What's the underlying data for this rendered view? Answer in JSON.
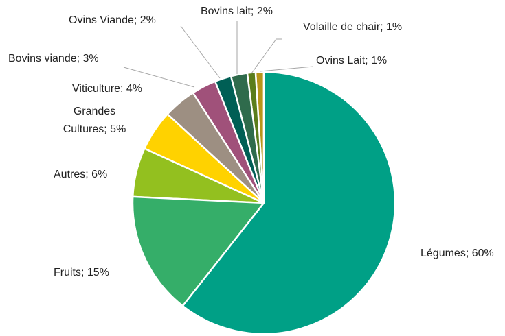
{
  "chart_data": {
    "type": "pie",
    "categories": [
      "Légumes",
      "Fruits",
      "Autres",
      "Grandes Cultures",
      "Viticulture",
      "Bovins viande",
      "Ovins Viande",
      "Bovins lait",
      "Volaille de chair",
      "Ovins Lait"
    ],
    "values": [
      60,
      15,
      6,
      5,
      4,
      3,
      2,
      2,
      1,
      1
    ],
    "value_labels": [
      "Légumes; 60%",
      "Fruits; 15%",
      "Autres; 6%",
      "Grandes Cultures; 5%",
      "Viticulture; 4%",
      "Bovins viande; 3%",
      "Ovins Viande; 2%",
      "Bovins lait; 2%",
      "Volaille de chair; 1%",
      "Ovins Lait; 1%"
    ],
    "colors": [
      "#00a086",
      "#35ae69",
      "#93c01f",
      "#ffd200",
      "#9d8f82",
      "#a0517a",
      "#005f55",
      "#2f6b4c",
      "#5b7d1c",
      "#b8951a"
    ]
  }
}
